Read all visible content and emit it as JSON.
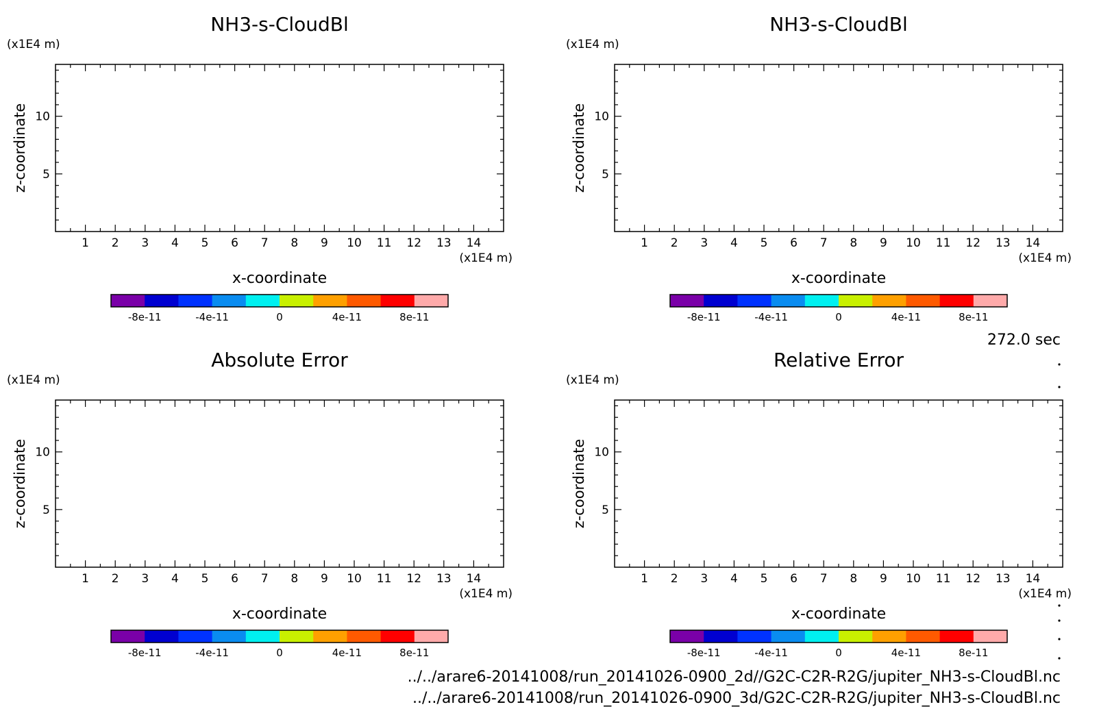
{
  "time_label": "272.0 sec",
  "file_paths": [
    "../../arare6-20141008/run_20141026-0900_2d//G2C-C2R-R2G/jupiter_NH3-s-CloudBl.nc",
    "../../arare6-20141008/run_20141026-0900_3d/G2C-C2R-R2G/jupiter_NH3-s-CloudBl.nc"
  ],
  "chart_data": [
    {
      "type": "heatmap",
      "title": "NH3-s-CloudBl",
      "xlabel": "x-coordinate",
      "ylabel": "z-coordinate",
      "x_unit": "(x1E4 m)",
      "y_unit": "(x1E4 m)",
      "xlim": [
        0,
        15
      ],
      "ylim": [
        0,
        14.5
      ],
      "x_ticks": [
        1,
        2,
        3,
        4,
        5,
        6,
        7,
        8,
        9,
        10,
        11,
        12,
        13,
        14
      ],
      "y_ticks": [
        5,
        10
      ],
      "grid": false,
      "values": [],
      "colorbar": {
        "colors": [
          "#7a00a8",
          "#0000d0",
          "#0032ff",
          "#0a8cf0",
          "#00f0f0",
          "#c8f000",
          "#ffa000",
          "#ff5a00",
          "#ff0000",
          "#ffaaaa"
        ],
        "tick_labels": [
          "-8e-11",
          "-4e-11",
          "0",
          "4e-11",
          "8e-11"
        ],
        "tick_values": [
          -8e-11,
          -4e-11,
          0,
          4e-11,
          8e-11
        ],
        "range": [
          -1e-10,
          1e-10
        ]
      }
    },
    {
      "type": "heatmap",
      "title": "NH3-s-CloudBl",
      "xlabel": "x-coordinate",
      "ylabel": "z-coordinate",
      "x_unit": "(x1E4 m)",
      "y_unit": "(x1E4 m)",
      "xlim": [
        0,
        15
      ],
      "ylim": [
        0,
        14.5
      ],
      "x_ticks": [
        1,
        2,
        3,
        4,
        5,
        6,
        7,
        8,
        9,
        10,
        11,
        12,
        13,
        14
      ],
      "y_ticks": [
        5,
        10
      ],
      "grid": false,
      "values": [],
      "colorbar": {
        "colors": [
          "#7a00a8",
          "#0000d0",
          "#0032ff",
          "#0a8cf0",
          "#00f0f0",
          "#c8f000",
          "#ffa000",
          "#ff5a00",
          "#ff0000",
          "#ffaaaa"
        ],
        "tick_labels": [
          "-8e-11",
          "-4e-11",
          "0",
          "4e-11",
          "8e-11"
        ],
        "tick_values": [
          -8e-11,
          -4e-11,
          0,
          4e-11,
          8e-11
        ],
        "range": [
          -1e-10,
          1e-10
        ]
      }
    },
    {
      "type": "heatmap",
      "title": "Absolute Error",
      "xlabel": "x-coordinate",
      "ylabel": "z-coordinate",
      "x_unit": "(x1E4 m)",
      "y_unit": "(x1E4 m)",
      "xlim": [
        0,
        15
      ],
      "ylim": [
        0,
        14.5
      ],
      "x_ticks": [
        1,
        2,
        3,
        4,
        5,
        6,
        7,
        8,
        9,
        10,
        11,
        12,
        13,
        14
      ],
      "y_ticks": [
        5,
        10
      ],
      "grid": false,
      "values": [],
      "colorbar": {
        "colors": [
          "#7a00a8",
          "#0000d0",
          "#0032ff",
          "#0a8cf0",
          "#00f0f0",
          "#c8f000",
          "#ffa000",
          "#ff5a00",
          "#ff0000",
          "#ffaaaa"
        ],
        "tick_labels": [
          "-8e-11",
          "-4e-11",
          "0",
          "4e-11",
          "8e-11"
        ],
        "tick_values": [
          -8e-11,
          -4e-11,
          0,
          4e-11,
          8e-11
        ],
        "range": [
          -1e-10,
          1e-10
        ]
      }
    },
    {
      "type": "heatmap",
      "title": "Relative Error",
      "xlabel": "x-coordinate",
      "ylabel": "z-coordinate",
      "x_unit": "(x1E4 m)",
      "y_unit": "(x1E4 m)",
      "xlim": [
        0,
        15
      ],
      "ylim": [
        0,
        14.5
      ],
      "x_ticks": [
        1,
        2,
        3,
        4,
        5,
        6,
        7,
        8,
        9,
        10,
        11,
        12,
        13,
        14
      ],
      "y_ticks": [
        5,
        10
      ],
      "grid": false,
      "values": [],
      "colorbar": {
        "colors": [
          "#7a00a8",
          "#0000d0",
          "#0032ff",
          "#0a8cf0",
          "#00f0f0",
          "#c8f000",
          "#ffa000",
          "#ff5a00",
          "#ff0000",
          "#ffaaaa"
        ],
        "tick_labels": [
          "-8e-11",
          "-4e-11",
          "0",
          "4e-11",
          "8e-11"
        ],
        "tick_values": [
          -8e-11,
          -4e-11,
          0,
          4e-11,
          8e-11
        ],
        "range": [
          -1e-10,
          1e-10
        ]
      }
    }
  ]
}
